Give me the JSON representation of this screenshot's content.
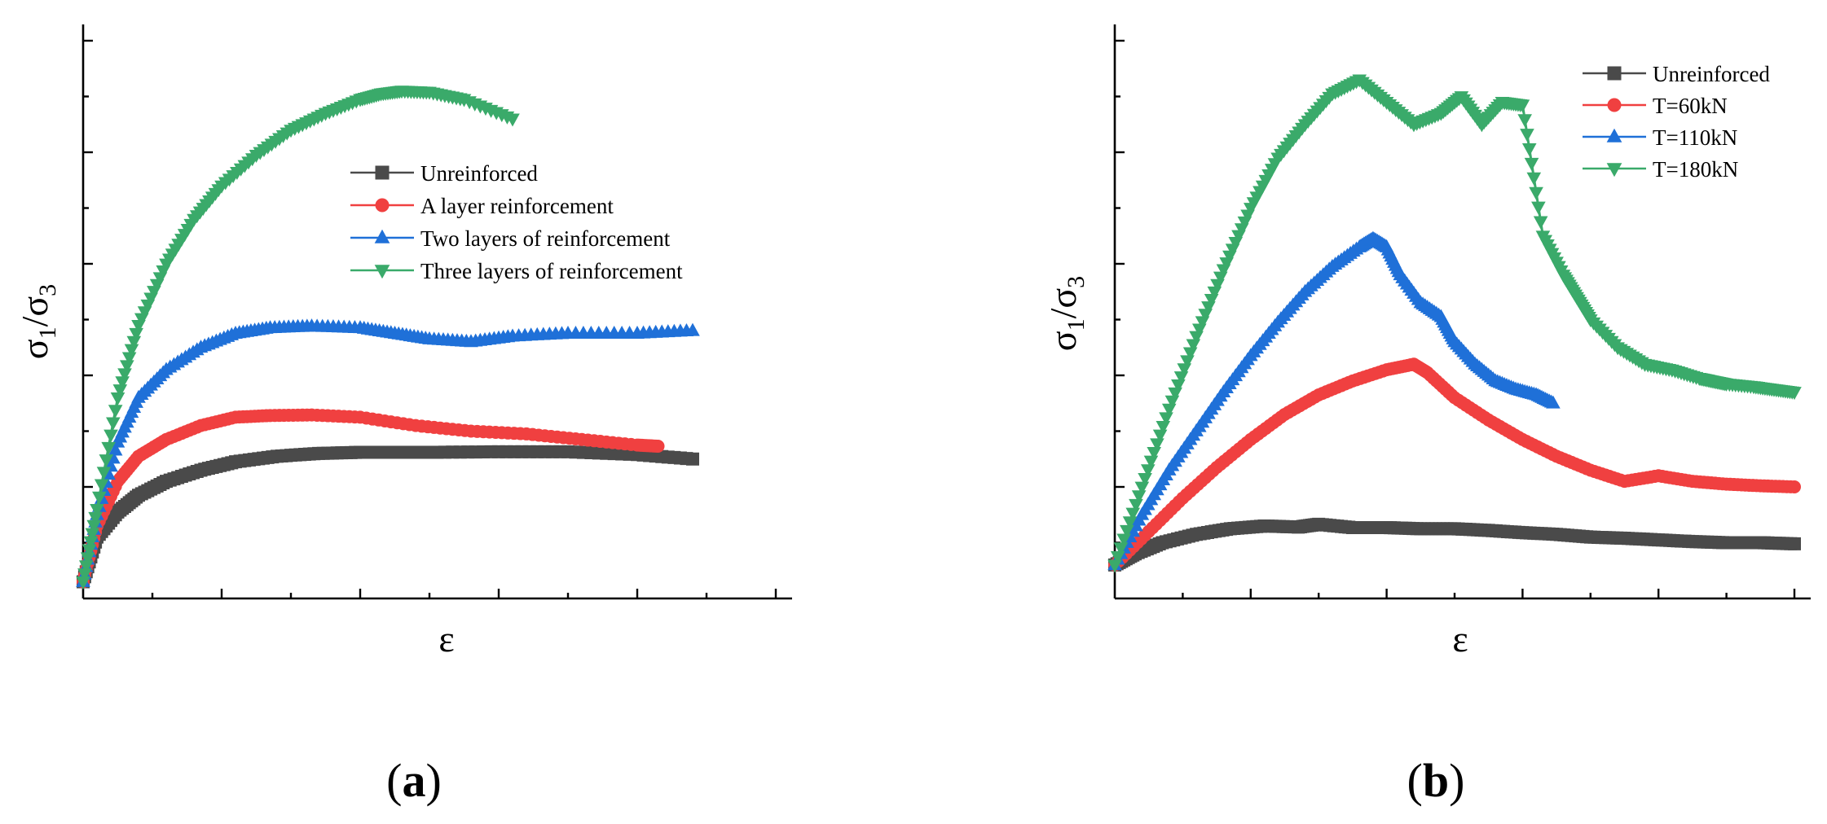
{
  "chart_data": [
    {
      "type": "line",
      "panel_label": "a",
      "xlabel": "ε",
      "ylabel": {
        "main": "σ",
        "sub1": "1",
        "slash": "/",
        "sub2": "3"
      },
      "xlim": [
        0,
        1
      ],
      "ylim": [
        0,
        10
      ],
      "legend_position": "top-right",
      "series": [
        {
          "name": "Unreinforced",
          "color": "#4a4a4a",
          "marker": "square",
          "x": [
            0.0,
            0.02,
            0.05,
            0.08,
            0.12,
            0.17,
            0.22,
            0.28,
            0.34,
            0.4,
            0.5,
            0.6,
            0.7,
            0.8,
            0.88
          ],
          "y": [
            0.3,
            1.1,
            1.55,
            1.85,
            2.1,
            2.3,
            2.45,
            2.55,
            2.6,
            2.62,
            2.62,
            2.63,
            2.63,
            2.58,
            2.5
          ]
        },
        {
          "name": "A layer reinforcement",
          "color": "#f04040",
          "marker": "circle",
          "x": [
            0.0,
            0.02,
            0.05,
            0.08,
            0.12,
            0.17,
            0.22,
            0.27,
            0.33,
            0.4,
            0.48,
            0.56,
            0.64,
            0.72,
            0.8,
            0.83
          ],
          "y": [
            0.3,
            1.3,
            2.1,
            2.55,
            2.85,
            3.1,
            3.25,
            3.28,
            3.29,
            3.25,
            3.1,
            3.0,
            2.95,
            2.85,
            2.75,
            2.73
          ]
        },
        {
          "name": "Two layers of reinforcement",
          "color": "#1f70d8",
          "marker": "triangle-up",
          "x": [
            0.0,
            0.02,
            0.05,
            0.08,
            0.12,
            0.17,
            0.22,
            0.27,
            0.33,
            0.4,
            0.45,
            0.5,
            0.56,
            0.62,
            0.7,
            0.8,
            0.88
          ],
          "y": [
            0.3,
            1.5,
            2.8,
            3.6,
            4.1,
            4.5,
            4.75,
            4.85,
            4.88,
            4.85,
            4.75,
            4.65,
            4.6,
            4.7,
            4.75,
            4.75,
            4.8
          ]
        },
        {
          "name": "Three layers of reinforcement",
          "color": "#3aaa6a",
          "marker": "triangle-down",
          "x": [
            0.0,
            0.02,
            0.05,
            0.08,
            0.12,
            0.16,
            0.2,
            0.25,
            0.3,
            0.35,
            0.4,
            0.43,
            0.46,
            0.5,
            0.55,
            0.62
          ],
          "y": [
            0.3,
            1.6,
            3.6,
            4.9,
            6.0,
            6.8,
            7.4,
            7.95,
            8.4,
            8.7,
            8.95,
            9.05,
            9.1,
            9.08,
            8.95,
            8.6
          ]
        }
      ]
    },
    {
      "type": "line",
      "panel_label": "b",
      "xlabel": "ε",
      "ylabel": {
        "main": "σ",
        "sub1": "1",
        "slash": "/",
        "sub2": "3"
      },
      "xlim": [
        0,
        1
      ],
      "ylim": [
        0,
        10
      ],
      "legend_position": "top-right",
      "series": [
        {
          "name": "Unreinforced",
          "color": "#4a4a4a",
          "marker": "square",
          "x": [
            0.0,
            0.03,
            0.07,
            0.12,
            0.17,
            0.22,
            0.27,
            0.3,
            0.35,
            0.4,
            0.45,
            0.5,
            0.55,
            0.6,
            0.65,
            0.7,
            0.75,
            0.8,
            0.85,
            0.9,
            0.95,
            1.0
          ],
          "y": [
            0.6,
            0.8,
            1.0,
            1.15,
            1.25,
            1.3,
            1.28,
            1.33,
            1.27,
            1.27,
            1.25,
            1.25,
            1.22,
            1.18,
            1.15,
            1.1,
            1.08,
            1.05,
            1.02,
            1.0,
            1.0,
            0.98
          ]
        },
        {
          "name": "T=60kN",
          "color": "#f04040",
          "marker": "circle",
          "x": [
            0.0,
            0.05,
            0.1,
            0.15,
            0.2,
            0.25,
            0.3,
            0.35,
            0.4,
            0.44,
            0.46,
            0.5,
            0.55,
            0.6,
            0.65,
            0.7,
            0.75,
            0.8,
            0.85,
            0.9,
            0.95,
            1.0
          ],
          "y": [
            0.6,
            1.2,
            1.8,
            2.35,
            2.85,
            3.3,
            3.65,
            3.9,
            4.1,
            4.2,
            4.05,
            3.6,
            3.2,
            2.85,
            2.55,
            2.3,
            2.1,
            2.2,
            2.1,
            2.05,
            2.02,
            2.0
          ]
        },
        {
          "name": "T=110kN",
          "color": "#1f70d8",
          "marker": "triangle-up",
          "x": [
            0.0,
            0.04,
            0.08,
            0.12,
            0.16,
            0.2,
            0.24,
            0.28,
            0.32,
            0.36,
            0.38,
            0.4,
            0.42,
            0.45,
            0.48,
            0.5,
            0.53,
            0.56,
            0.59,
            0.62,
            0.645
          ],
          "y": [
            0.6,
            1.5,
            2.3,
            3.0,
            3.7,
            4.35,
            4.95,
            5.5,
            5.95,
            6.3,
            6.45,
            6.3,
            5.8,
            5.3,
            5.05,
            4.6,
            4.2,
            3.9,
            3.75,
            3.65,
            3.5
          ]
        },
        {
          "name": "T=180kN",
          "color": "#3aaa6a",
          "marker": "triangle-down",
          "x": [
            0.0,
            0.04,
            0.08,
            0.12,
            0.16,
            0.2,
            0.24,
            0.28,
            0.32,
            0.36,
            0.4,
            0.44,
            0.48,
            0.51,
            0.54,
            0.57,
            0.6,
            0.63,
            0.66,
            0.68,
            0.7,
            0.74,
            0.78,
            0.82,
            0.86,
            0.88,
            0.9,
            0.94,
            0.97,
            1.0
          ],
          "y": [
            0.6,
            2.0,
            3.4,
            4.7,
            5.9,
            7.0,
            7.9,
            8.5,
            9.05,
            9.3,
            8.9,
            8.5,
            8.7,
            9.0,
            8.5,
            8.9,
            8.85,
            6.5,
            5.8,
            5.4,
            5.0,
            4.5,
            4.2,
            4.1,
            3.95,
            3.9,
            3.85,
            3.8,
            3.75,
            3.7
          ]
        }
      ]
    }
  ]
}
